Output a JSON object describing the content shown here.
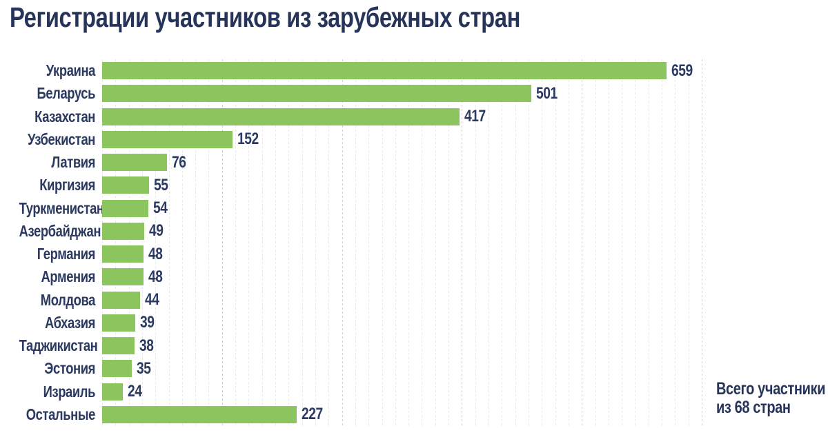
{
  "title": "Регистрации участников из зарубежных стран",
  "note": {
    "line1": "Всего участники",
    "line2": "из 68 стран"
  },
  "colors": {
    "bar": "#8cc45e",
    "text": "#2c3960",
    "title_text": "#273459",
    "grid_minor": "#e7e7eb",
    "grid_major": "#cfcfd7",
    "background": "#ffffff"
  },
  "chart_data": {
    "type": "bar",
    "orientation": "horizontal",
    "title": "Регистрации участников из зарубежных стран",
    "categories": [
      "Украина",
      "Беларусь",
      "Казахстан",
      "Узбекистан",
      "Латвия",
      "Киргизия",
      "Туркменистан",
      "Азербайджан",
      "Германия",
      "Армения",
      "Молдова",
      "Абхазия",
      "Таджикистан",
      "Эстония",
      "Израиль",
      "Остальные"
    ],
    "values": [
      659,
      501,
      417,
      152,
      76,
      55,
      54,
      49,
      48,
      48,
      44,
      39,
      38,
      35,
      24,
      227
    ],
    "xlabel": "",
    "ylabel": "",
    "xlim": [
      0,
      700
    ],
    "grid": true,
    "value_labels": true,
    "legend": false,
    "annotation": "Всего участники из 68 стран"
  }
}
